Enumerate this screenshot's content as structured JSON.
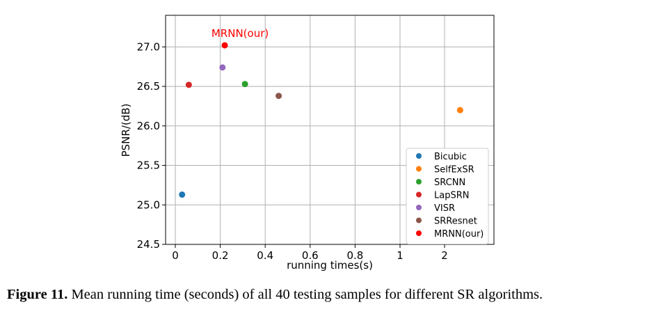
{
  "chart_data": {
    "type": "scatter",
    "xlabel": "running times(s)",
    "ylabel": "PSNR/(dB)",
    "x_tick_labels": [
      "0",
      "0.2",
      "0.4",
      "0.6",
      "0.8",
      "1",
      "2"
    ],
    "y_tick_labels": [
      "24.5",
      "25.0",
      "25.5",
      "26.0",
      "26.5",
      "27.0"
    ],
    "ylim": [
      24.5,
      27.4
    ],
    "grid": true,
    "legend_position": "lower-right",
    "annotation": {
      "text": "MRNN(our)",
      "color": "#ff0000"
    },
    "series": [
      {
        "name": "Bicubic",
        "x": 0.03,
        "y": 25.13,
        "color": "#1f77b4"
      },
      {
        "name": "SelfExSR",
        "x": 2.35,
        "y": 26.2,
        "color": "#ff7f0e"
      },
      {
        "name": "SRCNN",
        "x": 0.31,
        "y": 26.53,
        "color": "#2ca02c"
      },
      {
        "name": "LapSRN",
        "x": 0.06,
        "y": 26.52,
        "color": "#d62728"
      },
      {
        "name": "VISR",
        "x": 0.21,
        "y": 26.74,
        "color": "#9467bd"
      },
      {
        "name": "SRResnet",
        "x": 0.46,
        "y": 26.38,
        "color": "#8c564b"
      },
      {
        "name": "MRNN(our)",
        "x": 0.22,
        "y": 27.02,
        "color": "#ff0000"
      }
    ]
  },
  "caption": {
    "label": "Figure 11.",
    "text": " Mean running time (seconds) of all 40 testing samples for different SR algorithms."
  }
}
